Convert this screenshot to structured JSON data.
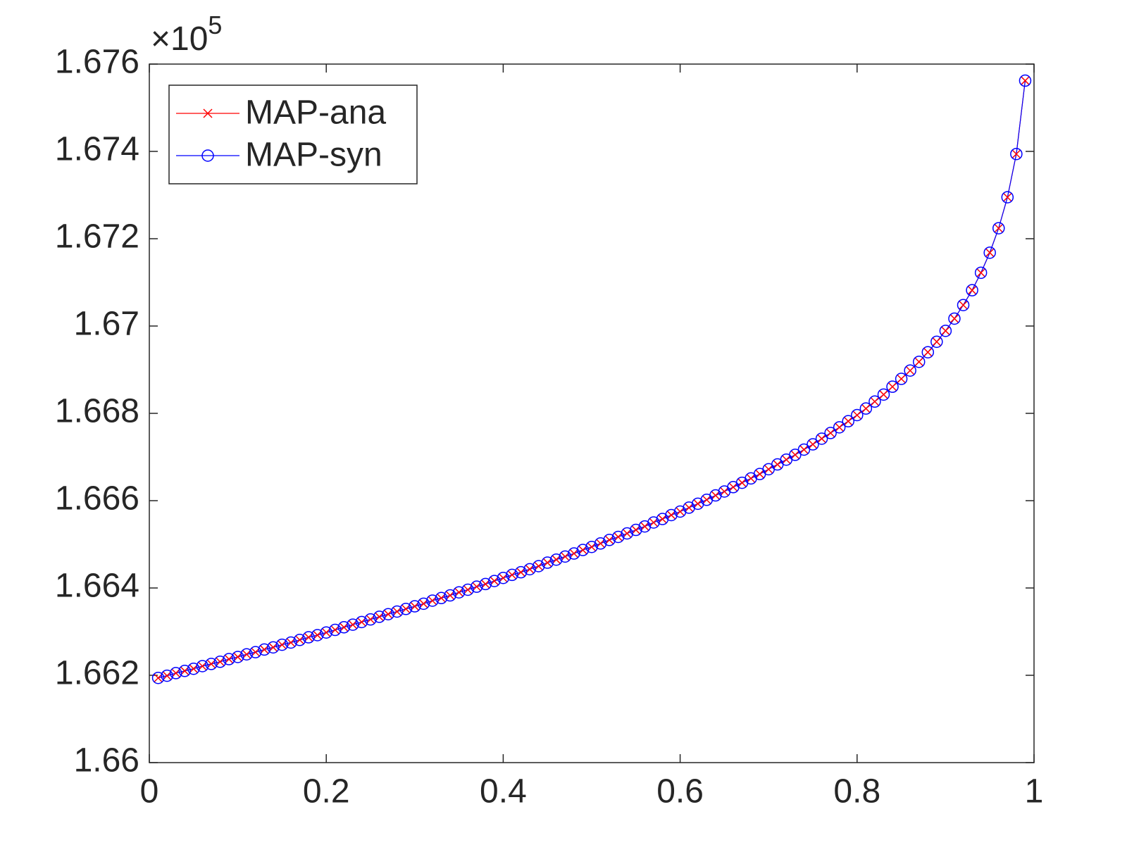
{
  "chart_data": {
    "type": "line",
    "y_multiplier": {
      "base": "×10",
      "exponent": "5"
    },
    "x": [
      0.01,
      0.02,
      0.03,
      0.04,
      0.05,
      0.06,
      0.07,
      0.08,
      0.09,
      0.1,
      0.11,
      0.12,
      0.13,
      0.14,
      0.15,
      0.16,
      0.17,
      0.18,
      0.19,
      0.2,
      0.21,
      0.22,
      0.23,
      0.24,
      0.25,
      0.26,
      0.27,
      0.28,
      0.29,
      0.3,
      0.31,
      0.32,
      0.33,
      0.34,
      0.35,
      0.36,
      0.37,
      0.38,
      0.39,
      0.4,
      0.41,
      0.42,
      0.43,
      0.44,
      0.45,
      0.46,
      0.47,
      0.48,
      0.49,
      0.5,
      0.51,
      0.52,
      0.53,
      0.54,
      0.55,
      0.56,
      0.57,
      0.58,
      0.59,
      0.6,
      0.61,
      0.62,
      0.63,
      0.64,
      0.65,
      0.66,
      0.67,
      0.68,
      0.69,
      0.7,
      0.71,
      0.72,
      0.73,
      0.74,
      0.75,
      0.76,
      0.77,
      0.78,
      0.79,
      0.8,
      0.81,
      0.82,
      0.83,
      0.84,
      0.85,
      0.86,
      0.87,
      0.88,
      0.89,
      0.9,
      0.91,
      0.92,
      0.93,
      0.94,
      0.95,
      0.96,
      0.97,
      0.98,
      0.99
    ],
    "series": [
      {
        "name": "MAP-ana",
        "color": "#ff0000",
        "marker": "x",
        "values": [
          1.66194,
          1.66199,
          1.66205,
          1.6621,
          1.66215,
          1.66221,
          1.66226,
          1.66231,
          1.66237,
          1.66242,
          1.66248,
          1.66253,
          1.66259,
          1.66264,
          1.6627,
          1.66275,
          1.66281,
          1.66287,
          1.66292,
          1.66298,
          1.66304,
          1.6631,
          1.66316,
          1.66322,
          1.66328,
          1.66334,
          1.6634,
          1.66346,
          1.66352,
          1.66358,
          1.66364,
          1.66371,
          1.66377,
          1.66383,
          1.6639,
          1.66396,
          1.66403,
          1.66409,
          1.66416,
          1.66423,
          1.6643,
          1.66436,
          1.66443,
          1.6645,
          1.66458,
          1.66465,
          1.66472,
          1.66479,
          1.66487,
          1.66494,
          1.66502,
          1.6651,
          1.66517,
          1.66525,
          1.66533,
          1.66541,
          1.6655,
          1.66558,
          1.66567,
          1.66575,
          1.66584,
          1.66593,
          1.66602,
          1.66612,
          1.66621,
          1.66631,
          1.66641,
          1.66651,
          1.66661,
          1.66672,
          1.66683,
          1.66694,
          1.66705,
          1.66717,
          1.66729,
          1.66742,
          1.66755,
          1.66768,
          1.66782,
          1.66796,
          1.66811,
          1.66827,
          1.66843,
          1.66861,
          1.66879,
          1.66898,
          1.66918,
          1.6694,
          1.66964,
          1.66989,
          1.67017,
          1.67048,
          1.67082,
          1.67122,
          1.67168,
          1.67224,
          1.67295,
          1.67394,
          1.67562
        ]
      },
      {
        "name": "MAP-syn",
        "color": "#0000ff",
        "marker": "o",
        "values": [
          1.66194,
          1.66199,
          1.66205,
          1.6621,
          1.66215,
          1.66221,
          1.66226,
          1.66231,
          1.66237,
          1.66242,
          1.66248,
          1.66253,
          1.66259,
          1.66264,
          1.6627,
          1.66275,
          1.66281,
          1.66287,
          1.66292,
          1.66298,
          1.66304,
          1.6631,
          1.66316,
          1.66322,
          1.66328,
          1.66334,
          1.6634,
          1.66346,
          1.66352,
          1.66358,
          1.66364,
          1.66371,
          1.66377,
          1.66383,
          1.6639,
          1.66396,
          1.66403,
          1.66409,
          1.66416,
          1.66423,
          1.6643,
          1.66436,
          1.66443,
          1.6645,
          1.66458,
          1.66465,
          1.66472,
          1.66479,
          1.66487,
          1.66494,
          1.66502,
          1.6651,
          1.66517,
          1.66525,
          1.66533,
          1.66541,
          1.6655,
          1.66558,
          1.66567,
          1.66575,
          1.66584,
          1.66593,
          1.66602,
          1.66612,
          1.66621,
          1.66631,
          1.66641,
          1.66651,
          1.66661,
          1.66672,
          1.66683,
          1.66694,
          1.66705,
          1.66717,
          1.66729,
          1.66742,
          1.66755,
          1.66768,
          1.66782,
          1.66796,
          1.66811,
          1.66827,
          1.66843,
          1.66861,
          1.66879,
          1.66898,
          1.66918,
          1.6694,
          1.66964,
          1.66989,
          1.67017,
          1.67048,
          1.67082,
          1.67122,
          1.67168,
          1.67224,
          1.67295,
          1.67394,
          1.67562
        ]
      }
    ],
    "xlim": [
      0,
      1
    ],
    "xticks": [
      0,
      0.2,
      0.4,
      0.6,
      0.8,
      1
    ],
    "ylim": [
      1.66,
      1.676
    ],
    "yticks": [
      1.66,
      1.662,
      1.664,
      1.666,
      1.668,
      1.67,
      1.672,
      1.674,
      1.676
    ],
    "grid": false,
    "legend": "upper left"
  }
}
